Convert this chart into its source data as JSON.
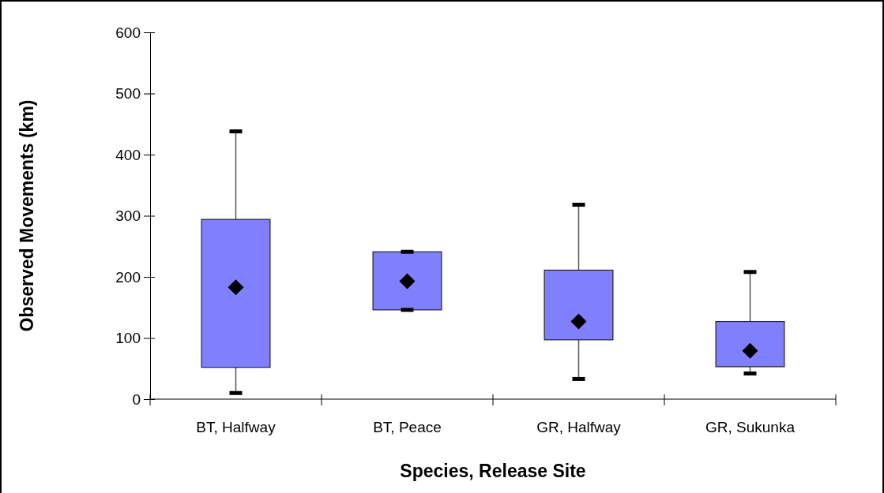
{
  "chart_data": {
    "type": "box",
    "xlabel": "Species, Release Site",
    "ylabel": "Observed Movements (km)",
    "categories": [
      "BT, Halfway",
      "BT, Peace",
      "GR, Halfway",
      "GR, Sukunka"
    ],
    "boxes": [
      {
        "low": 10,
        "q1": 52,
        "median": 183,
        "q3": 294,
        "high": 438
      },
      {
        "low": 146,
        "q1": 146,
        "median": 193,
        "q3": 241,
        "high": 241
      },
      {
        "low": 33,
        "q1": 97,
        "median": 127,
        "q3": 211,
        "high": 318
      },
      {
        "low": 42,
        "q1": 53,
        "median": 79,
        "q3": 127,
        "high": 208
      }
    ],
    "color": "#8080ff",
    "marker": "diamond",
    "ylim": [
      0,
      600
    ],
    "yticks": [
      0,
      100,
      200,
      300,
      400,
      500,
      600
    ],
    "grid": false
  }
}
